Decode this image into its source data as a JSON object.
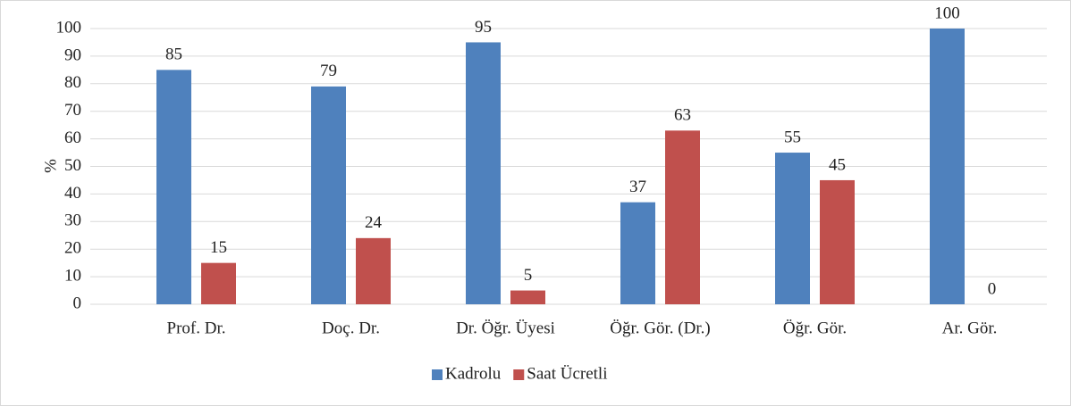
{
  "chart_data": {
    "type": "bar",
    "ylabel": "%",
    "categories": [
      "Prof. Dr.",
      "Doç. Dr.",
      "Dr. Öğr. Üyesi",
      "Öğr. Gör. (Dr.)",
      "Öğr. Gör.",
      "Ar. Gör."
    ],
    "series": [
      {
        "name": "Kadrolu",
        "color": "#4f81bd",
        "values": [
          85,
          79,
          95,
          37,
          55,
          100
        ]
      },
      {
        "name": "Saat Ücretli",
        "color": "#c0504d",
        "values": [
          15,
          24,
          5,
          63,
          45,
          0
        ]
      }
    ],
    "ylim": [
      0,
      100
    ],
    "yticks": [
      0,
      10,
      20,
      30,
      40,
      50,
      60,
      70,
      80,
      90,
      100
    ],
    "grid": true,
    "legend": "bottom"
  }
}
